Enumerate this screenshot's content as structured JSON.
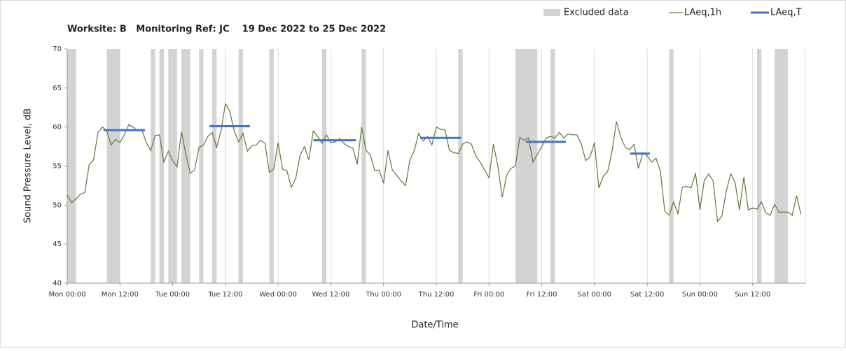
{
  "chart_data": {
    "type": "line",
    "title": "Worksite: B   Monitoring Ref: JC    19 Dec 2022 to 25 Dec 2022",
    "xlabel": "Date/Time",
    "ylabel": "Sound Pressure Level, dB",
    "xlim": [
      0,
      168
    ],
    "ylim": [
      40,
      70
    ],
    "yticks": [
      40,
      45,
      50,
      55,
      60,
      65,
      70
    ],
    "xticks": [
      {
        "value": 0,
        "label": "Mon 00:00"
      },
      {
        "value": 12,
        "label": "Mon 12:00"
      },
      {
        "value": 24,
        "label": "Tue 00:00"
      },
      {
        "value": 36,
        "label": "Tue 12:00"
      },
      {
        "value": 48,
        "label": "Wed 00:00"
      },
      {
        "value": 60,
        "label": "Wed 12:00"
      },
      {
        "value": 72,
        "label": "Thu 00:00"
      },
      {
        "value": 84,
        "label": "Thu 12:00"
      },
      {
        "value": 96,
        "label": "Fri 00:00"
      },
      {
        "value": 108,
        "label": "Fri 12:00"
      },
      {
        "value": 120,
        "label": "Sat 00:00"
      },
      {
        "value": 132,
        "label": "Sat 12:00"
      },
      {
        "value": 144,
        "label": "Sun 00:00"
      },
      {
        "value": 156,
        "label": "Sun 12:00"
      }
    ],
    "grid": true,
    "x": [
      0,
      1,
      2,
      3,
      4,
      5,
      6,
      7,
      8,
      9,
      10,
      11,
      12,
      13,
      14,
      15,
      16,
      17,
      18,
      19,
      20,
      21,
      22,
      23,
      24,
      25,
      26,
      27,
      28,
      29,
      30,
      31,
      32,
      33,
      34,
      35,
      36,
      37,
      38,
      39,
      40,
      41,
      42,
      43,
      44,
      45,
      46,
      47,
      48,
      49,
      50,
      51,
      52,
      53,
      54,
      55,
      56,
      57,
      58,
      59,
      60,
      61,
      62,
      63,
      64,
      65,
      66,
      67,
      68,
      69,
      70,
      71,
      72,
      73,
      74,
      75,
      76,
      77,
      78,
      79,
      80,
      81,
      82,
      83,
      84,
      85,
      86,
      87,
      88,
      89,
      90,
      91,
      92,
      93,
      94,
      95,
      96,
      97,
      98,
      99,
      100,
      101,
      102,
      103,
      104,
      105,
      106,
      107,
      108,
      109,
      110,
      111,
      112,
      113,
      114,
      115,
      116,
      117,
      118,
      119,
      120,
      121,
      122,
      123,
      124,
      125,
      126,
      127,
      128,
      129,
      130,
      131,
      132,
      133,
      134,
      135,
      136,
      137,
      138,
      139,
      140,
      141,
      142,
      143,
      144,
      145,
      146,
      147,
      148,
      149,
      150,
      151,
      152,
      153,
      154,
      155,
      156,
      157,
      158,
      159,
      160,
      161,
      162,
      163,
      164,
      165,
      166,
      167
    ],
    "series": [
      {
        "name": "LAeq,1h",
        "color": "#5a7a3a",
        "values": [
          51.3,
          50.3,
          50.8,
          51.4,
          51.6,
          55.2,
          55.8,
          59.3,
          60.0,
          59.5,
          57.7,
          58.4,
          58.0,
          59.0,
          60.3,
          60.0,
          59.5,
          59.6,
          58.0,
          57.0,
          58.9,
          59.0,
          55.5,
          56.9,
          55.7,
          54.9,
          59.4,
          56.5,
          54.1,
          54.5,
          57.4,
          57.7,
          58.8,
          59.3,
          57.4,
          59.5,
          63.0,
          62.0,
          59.5,
          58.1,
          59.2,
          56.9,
          57.6,
          57.7,
          58.3,
          57.9,
          54.2,
          54.6,
          58.0,
          54.6,
          54.4,
          52.3,
          53.4,
          56.4,
          57.5,
          55.8,
          59.5,
          58.8,
          57.9,
          59.0,
          58.0,
          58.1,
          58.5,
          57.9,
          57.5,
          57.3,
          55.2,
          60.0,
          57.0,
          56.4,
          54.4,
          54.5,
          52.8,
          57.0,
          54.5,
          53.8,
          53.1,
          52.5,
          55.8,
          57.0,
          59.2,
          58.2,
          58.8,
          57.7,
          60.0,
          59.7,
          59.6,
          57.0,
          56.7,
          56.6,
          57.8,
          58.1,
          57.8,
          56.3,
          55.5,
          54.5,
          53.5,
          57.8,
          55.0,
          51.0,
          53.8,
          54.7,
          55.0,
          58.7,
          58.3,
          58.6,
          55.5,
          56.5,
          57.5,
          58.6,
          58.8,
          58.6,
          59.3,
          58.6,
          59.1,
          59.0,
          59.0,
          57.8,
          55.7,
          56.2,
          58.0,
          52.2,
          53.7,
          54.3,
          56.9,
          60.7,
          58.7,
          57.4,
          57.1,
          57.8,
          54.7,
          56.7,
          56.3,
          55.5,
          56.0,
          54.3,
          49.2,
          48.7,
          50.4,
          48.9,
          52.3,
          52.4,
          52.2,
          54.1,
          49.4,
          53.2,
          54.0,
          53.1,
          47.9,
          48.6,
          51.8,
          54.0,
          52.9,
          49.4,
          53.6,
          49.4,
          49.6,
          49.5,
          50.4,
          49.0,
          48.7,
          50.1,
          49.1,
          49.1,
          49.1,
          48.7,
          51.2,
          48.8
        ]
      }
    ],
    "excluded": {
      "name": "Excluded data",
      "color": "#d3d3d3",
      "ranges": [
        [
          0,
          2
        ],
        [
          9,
          12
        ],
        [
          19,
          20
        ],
        [
          21,
          22
        ],
        [
          23,
          25
        ],
        [
          26,
          28
        ],
        [
          30,
          31
        ],
        [
          33,
          34
        ],
        [
          39,
          40
        ],
        [
          46,
          47
        ],
        [
          58,
          59
        ],
        [
          67,
          68
        ],
        [
          89,
          90
        ],
        [
          102,
          107
        ],
        [
          110,
          111
        ],
        [
          137,
          138
        ],
        [
          157,
          158
        ],
        [
          161,
          164
        ]
      ]
    },
    "laeq_t": {
      "name": "LAeq,T",
      "color": "#4472c4",
      "segments": [
        {
          "start": 8.3,
          "end": 17.7,
          "value": 59.6
        },
        {
          "start": 32.4,
          "end": 41.6,
          "value": 60.1
        },
        {
          "start": 56,
          "end": 65.7,
          "value": 58.3
        },
        {
          "start": 80.3,
          "end": 89.6,
          "value": 58.6
        },
        {
          "start": 104.4,
          "end": 113.5,
          "value": 58.1
        },
        {
          "start": 128.1,
          "end": 132.6,
          "value": 56.6
        }
      ]
    }
  }
}
